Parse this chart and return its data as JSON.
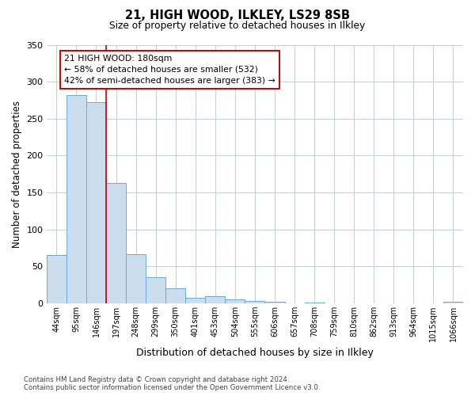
{
  "title": "21, HIGH WOOD, ILKLEY, LS29 8SB",
  "subtitle": "Size of property relative to detached houses in Ilkley",
  "xlabel": "Distribution of detached houses by size in Ilkley",
  "ylabel": "Number of detached properties",
  "bin_labels": [
    "44sqm",
    "95sqm",
    "146sqm",
    "197sqm",
    "248sqm",
    "299sqm",
    "350sqm",
    "401sqm",
    "453sqm",
    "504sqm",
    "555sqm",
    "606sqm",
    "657sqm",
    "708sqm",
    "759sqm",
    "810sqm",
    "862sqm",
    "913sqm",
    "964sqm",
    "1015sqm",
    "1066sqm"
  ],
  "bar_heights": [
    65,
    282,
    272,
    163,
    67,
    35,
    20,
    7,
    10,
    5,
    3,
    2,
    0,
    1,
    0,
    0,
    0,
    0,
    0,
    0,
    2
  ],
  "bar_color": "#ccddf0",
  "bar_edge_color": "#6aaad4",
  "vline_bin": 3,
  "vline_color": "#cc0000",
  "annotation_text": "21 HIGH WOOD: 180sqm\n← 58% of detached houses are smaller (532)\n42% of semi-detached houses are larger (383) →",
  "annotation_box_facecolor": "#ffffff",
  "annotation_box_edgecolor": "#cc0000",
  "ylim": [
    0,
    350
  ],
  "yticks": [
    0,
    50,
    100,
    150,
    200,
    250,
    300,
    350
  ],
  "background_color": "#ffffff",
  "grid_color": "#c8d0dc",
  "footer_line1": "Contains HM Land Registry data © Crown copyright and database right 2024.",
  "footer_line2": "Contains public sector information licensed under the Open Government Licence v3.0."
}
